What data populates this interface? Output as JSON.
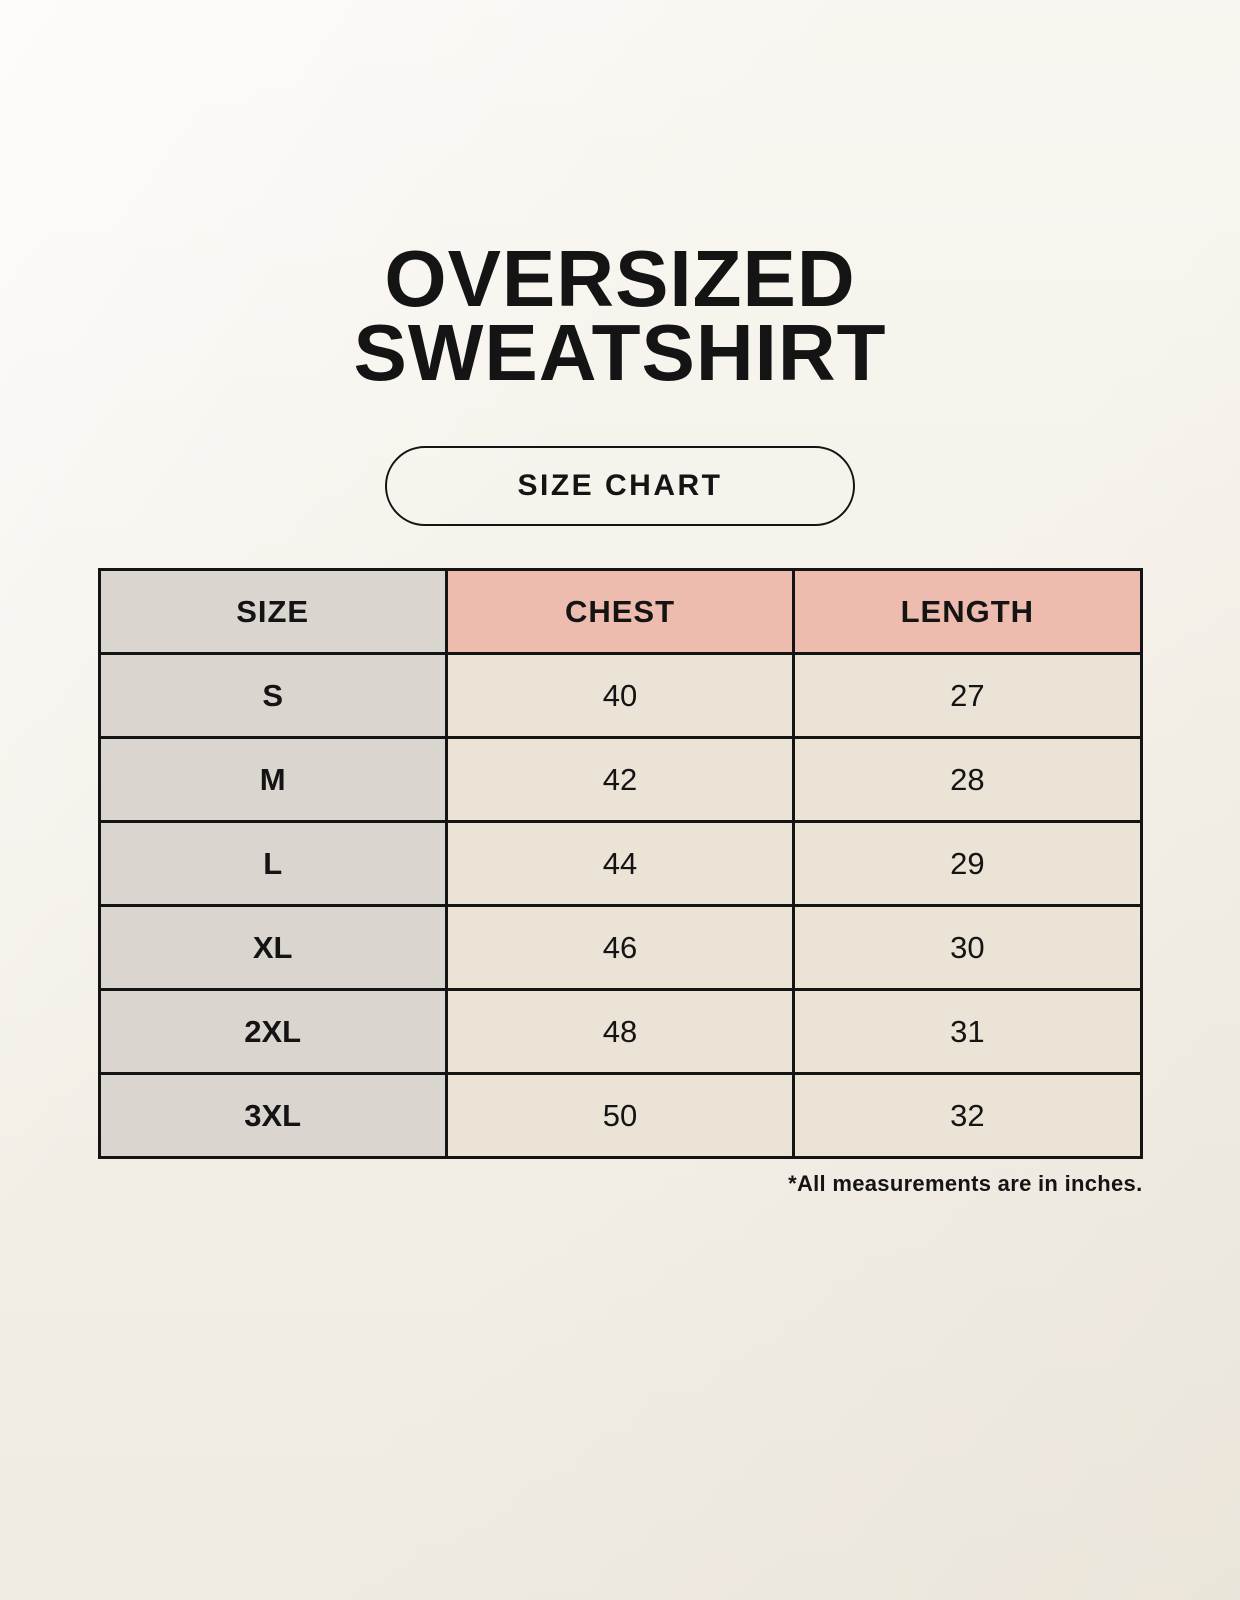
{
  "title": {
    "line1": "OVERSIZED",
    "line2": "SWEATSHIRT"
  },
  "size_chart_button": {
    "label": "SIZE CHART"
  },
  "footnote": "*All measurements are in inches.",
  "colors": {
    "background": "#f7f3ec",
    "header_accent": "#edbcae",
    "size_column": "#dbd5d0",
    "data_cell": "#eae3d6",
    "border": "#141414",
    "text": "#141414"
  },
  "chart_data": {
    "type": "table",
    "title": "OVERSIZED SWEATSHIRT",
    "subtitle": "SIZE CHART",
    "columns": [
      "SIZE",
      "CHEST",
      "LENGTH"
    ],
    "rows": [
      [
        "S",
        "40",
        "27"
      ],
      [
        "M",
        "42",
        "28"
      ],
      [
        "L",
        "44",
        "29"
      ],
      [
        "XL",
        "46",
        "30"
      ],
      [
        "2XL",
        "48",
        "31"
      ],
      [
        "3XL",
        "50",
        "32"
      ]
    ],
    "units_note": "*All measurements are in inches."
  }
}
